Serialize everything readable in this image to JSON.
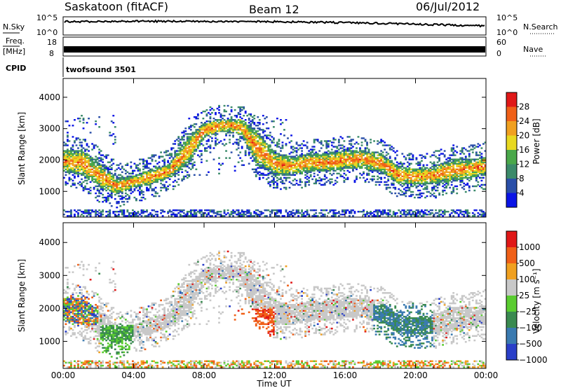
{
  "header": {
    "station": "Saskatoon (fitACF)",
    "beam": "Beam 12",
    "date": "06/Jul/2012"
  },
  "strips": {
    "nsky_label": "N.Sky",
    "nsky_ticks": [
      "10^5",
      "10^0"
    ],
    "nsearch_label": "N.Search",
    "nsearch_ticks": [
      "10^5",
      "10^0"
    ],
    "freq_label_1": "Freq.",
    "freq_label_2": "[MHz]",
    "freq_ticks": [
      "18",
      "8"
    ],
    "nave_label": "Nave",
    "nave_ticks": [
      "60",
      "0"
    ],
    "cpid_label": "CPID",
    "cpid_text": "twofsound 3501"
  },
  "chart_data": [
    {
      "type": "heatmap",
      "name": "power",
      "ylabel": "Slant Range [km]",
      "yticks": [
        1000,
        2000,
        3000,
        4000
      ],
      "ylim": [
        180,
        4600
      ],
      "xlabel": "Time UT",
      "xticks": [
        "00:00",
        "04:00",
        "08:00",
        "12:00",
        "16:00",
        "20:00",
        "00:00"
      ],
      "xlim_hours": [
        0,
        24
      ],
      "colorbar_label": "Power [dB]",
      "colorbar_ticks": [
        "4",
        "8",
        "12",
        "16",
        "20",
        "24",
        "28"
      ],
      "colorbar_colors": [
        "#0a14e6",
        "#2a4fa8",
        "#3b8a6a",
        "#4aa84a",
        "#e8d820",
        "#f0a020",
        "#f06018",
        "#e01818"
      ],
      "echo_band_km": [
        [
          0,
          1600,
          2300
        ],
        [
          1,
          1500,
          2300
        ],
        [
          2,
          1100,
          1900
        ],
        [
          3,
          900,
          1400
        ],
        [
          4,
          1100,
          1500
        ],
        [
          5,
          1200,
          1700
        ],
        [
          6,
          1400,
          1900
        ],
        [
          7,
          1800,
          2700
        ],
        [
          8,
          2700,
          3200
        ],
        [
          9,
          2900,
          3300
        ],
        [
          10,
          2800,
          3300
        ],
        [
          11,
          1800,
          2900
        ],
        [
          12,
          1500,
          2200
        ],
        [
          13,
          1500,
          2100
        ],
        [
          14,
          1600,
          2200
        ],
        [
          15,
          1600,
          2200
        ],
        [
          16,
          1700,
          2300
        ],
        [
          17,
          1700,
          2300
        ],
        [
          18,
          1600,
          2200
        ],
        [
          19,
          1200,
          1800
        ],
        [
          20,
          1200,
          1700
        ],
        [
          21,
          1200,
          1800
        ],
        [
          22,
          1300,
          2000
        ],
        [
          23,
          1400,
          2000
        ],
        [
          24,
          1500,
          2100
        ]
      ]
    },
    {
      "type": "heatmap",
      "name": "velocity",
      "ylabel": "Slant Range [km]",
      "yticks": [
        1000,
        2000,
        3000,
        4000
      ],
      "ylim": [
        180,
        4600
      ],
      "colorbar_label": "Velocity [m s⁻¹]",
      "colorbar_ticks": [
        "1000",
        "500",
        "100",
        "25",
        "−25",
        "−100",
        "−500",
        "−1000"
      ],
      "colorbar_colors": [
        "#2a3fc8",
        "#3a7ab0",
        "#3a8a50",
        "#5acc30",
        "#c8c8c8",
        "#f0a020",
        "#f06018",
        "#e01818"
      ]
    }
  ]
}
